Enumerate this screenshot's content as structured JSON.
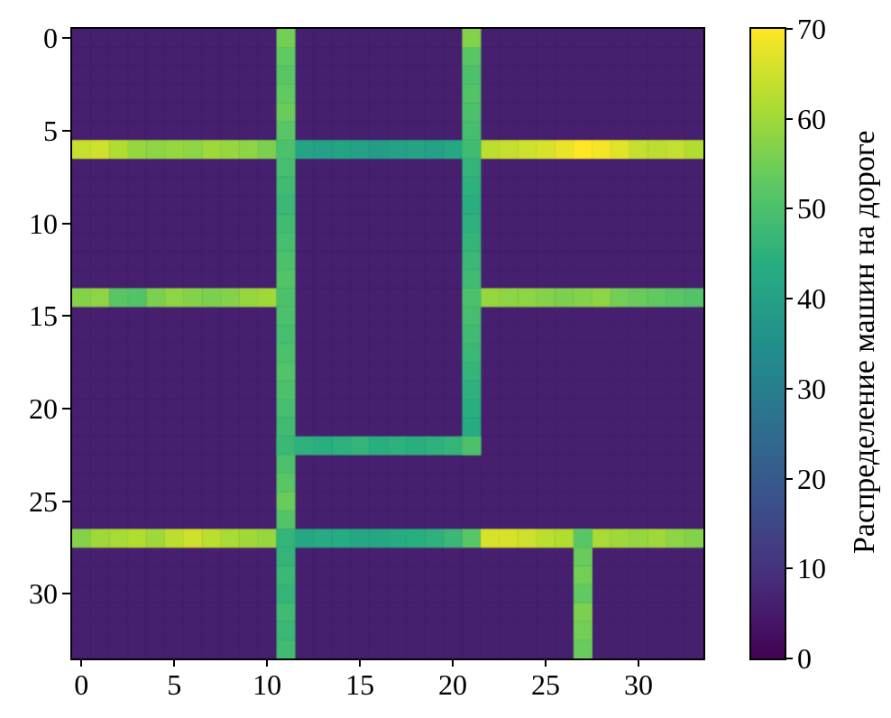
{
  "figure": {
    "background_color": "#ffffff",
    "text_color": "#000000"
  },
  "chart_data": {
    "type": "heatmap",
    "title": "",
    "xlabel": "",
    "ylabel": "",
    "grid": {
      "cols": 34,
      "rows": 34
    },
    "grid_on": false,
    "x_ticks": [
      0,
      5,
      10,
      15,
      20,
      25,
      30
    ],
    "y_ticks": [
      0,
      5,
      10,
      15,
      20,
      25,
      30
    ],
    "xlim": [
      0,
      34
    ],
    "ylim": [
      34,
      0
    ],
    "value_range": [
      0,
      70
    ],
    "background_value": 6,
    "colorbar": {
      "label": "Распределение машин на дороге",
      "ticks": [
        0,
        10,
        20,
        30,
        40,
        50,
        60,
        70
      ],
      "position": "right"
    },
    "colormap": {
      "name": "viridis",
      "stops": [
        [
          0.0,
          "#440154"
        ],
        [
          0.125,
          "#472d7b"
        ],
        [
          0.25,
          "#3b518b"
        ],
        [
          0.375,
          "#2c718e"
        ],
        [
          0.5,
          "#21908c"
        ],
        [
          0.625,
          "#27ad81"
        ],
        [
          0.75,
          "#5cc863"
        ],
        [
          0.875,
          "#aadc32"
        ],
        [
          1.0,
          "#fde725"
        ]
      ]
    },
    "roads": [
      {
        "name": "row-6",
        "orientation": "h",
        "index": 6,
        "start": 0,
        "values": [
          64,
          65,
          62,
          59,
          58,
          59,
          58,
          60,
          59,
          58,
          56,
          48,
          41,
          40,
          41,
          40,
          39,
          40,
          41,
          40,
          42,
          48,
          63,
          64,
          65,
          66,
          68,
          70,
          69,
          67,
          64,
          63,
          64,
          62
        ]
      },
      {
        "name": "row-14-left",
        "orientation": "h",
        "index": 14,
        "start": 0,
        "values": [
          57,
          58,
          52,
          51,
          56,
          58,
          57,
          56,
          57,
          59,
          60
        ]
      },
      {
        "name": "row-14-right",
        "orientation": "h",
        "index": 14,
        "start": 22,
        "values": [
          59,
          58,
          58,
          57,
          56,
          57,
          58,
          55,
          54,
          53,
          52,
          51
        ]
      },
      {
        "name": "row-22",
        "orientation": "h",
        "index": 22,
        "start": 11,
        "values": [
          47,
          45,
          44,
          45,
          46,
          44,
          45,
          44,
          45,
          46,
          50
        ]
      },
      {
        "name": "row-27",
        "orientation": "h",
        "index": 27,
        "start": 0,
        "values": [
          57,
          60,
          61,
          62,
          60,
          63,
          65,
          63,
          61,
          60,
          59,
          46,
          42,
          43,
          43,
          42,
          42,
          43,
          44,
          45,
          47,
          52,
          66,
          66,
          65,
          63,
          62,
          62,
          61,
          60,
          59,
          60,
          58,
          57
        ]
      },
      {
        "name": "col-11",
        "orientation": "v",
        "index": 11,
        "start": 0,
        "values": [
          55,
          53,
          52,
          53,
          54,
          52,
          50,
          49,
          48,
          47,
          48,
          49,
          50,
          51,
          50,
          50,
          49,
          50,
          51,
          50,
          49,
          48,
          47,
          50,
          52,
          54,
          51,
          46,
          46,
          47,
          46,
          48,
          47,
          48
        ]
      },
      {
        "name": "col-21-upper",
        "orientation": "v",
        "index": 21,
        "start": 0,
        "values": [
          57,
          52,
          50,
          51,
          50,
          49,
          48,
          46,
          45,
          44,
          45,
          46,
          47,
          48,
          50,
          49,
          48,
          47,
          46,
          45,
          44,
          43,
          50
        ]
      },
      {
        "name": "col-21-lower",
        "orientation": "v",
        "index": 27,
        "start": 27,
        "values": [
          52,
          54,
          55,
          53,
          56,
          55,
          54
        ]
      }
    ]
  }
}
